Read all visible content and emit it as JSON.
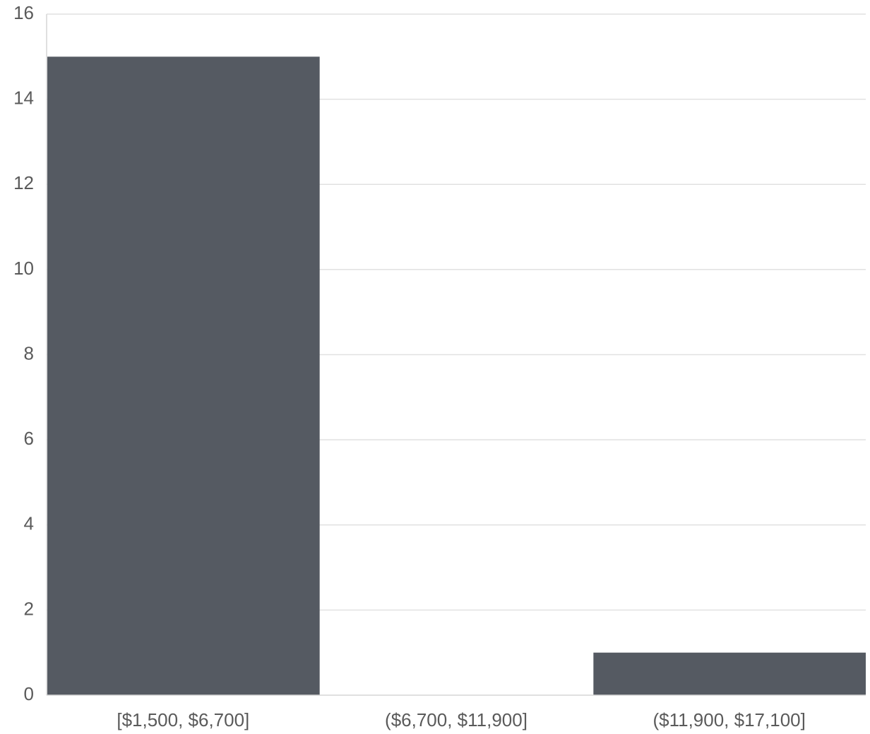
{
  "chart_data": {
    "type": "bar",
    "categories": [
      "[$1,500, $6,700]",
      "($6,700, $11,900]",
      "($11,900, $17,100]"
    ],
    "values": [
      15,
      0,
      1
    ],
    "title": "",
    "xlabel": "",
    "ylabel": "",
    "ylim": [
      0,
      16
    ],
    "yticks": [
      0,
      2,
      4,
      6,
      8,
      10,
      12,
      14,
      16
    ],
    "grid": true,
    "legend": "none",
    "colors": {
      "bar": "#555a62",
      "grid": "#e1e1e1",
      "axis": "#d6d6d6",
      "tick_label": "#5a5a5a"
    }
  }
}
